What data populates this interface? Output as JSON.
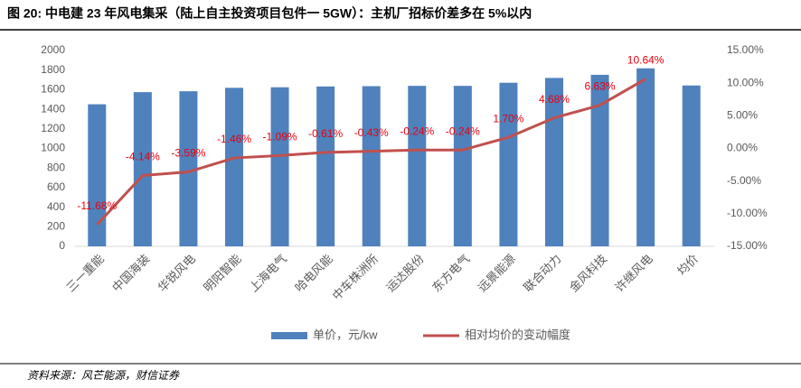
{
  "chart_data": {
    "type": "bar-line",
    "title": "图 20: 中电建 23 年风电集采（陆上自主投资项目包件一 5GW）：主机厂招标价差多在 5%以内",
    "source": "资料来源：风芒能源，财信证券",
    "categories": [
      "三一重能",
      "中国海装",
      "华锐风电",
      "明阳智能",
      "上海电气",
      "哈电风能",
      "中车株洲所",
      "运达股份",
      "东方电气",
      "远景能源",
      "联合动力",
      "金风科技",
      "许继风电",
      "均价"
    ],
    "series": [
      {
        "name": "单价，元/kw",
        "color": "#4f81bd",
        "type": "bar",
        "values": [
          1451,
          1575,
          1584,
          1619,
          1625,
          1633,
          1636,
          1639,
          1639,
          1671,
          1720,
          1752,
          1818,
          1643
        ]
      },
      {
        "name": "相对均价的变动幅度",
        "color": "#c0504d",
        "type": "line",
        "axis": "y2",
        "values": [
          -11.68,
          -4.14,
          -3.59,
          -1.46,
          -1.09,
          -0.61,
          -0.43,
          -0.24,
          -0.24,
          1.7,
          4.68,
          6.63,
          10.64,
          null
        ],
        "value_labels": [
          "-11.68%",
          "-4.14%",
          "-3.59%",
          "-1.46%",
          "-1.09%",
          "-0.61%",
          "-0.43%",
          "-0.24%",
          "-0.24%",
          "1.70%",
          "4.68%",
          "6.63%",
          "10.64%",
          null
        ],
        "label_color": "#e8000b"
      }
    ],
    "ylim": [
      0,
      2000
    ],
    "yticks": [
      0,
      200,
      400,
      600,
      800,
      1000,
      1200,
      1400,
      1600,
      1800,
      2000
    ],
    "y2lim": [
      -15,
      15
    ],
    "y2ticks": [
      {
        "value": -15,
        "label": "-15.00%"
      },
      {
        "value": -10,
        "label": "-10.00%"
      },
      {
        "value": -5,
        "label": "-5.00%"
      },
      {
        "value": 0,
        "label": "0.00%"
      },
      {
        "value": 5,
        "label": "5.00%"
      },
      {
        "value": 10,
        "label": "10.00%"
      },
      {
        "value": 15,
        "label": "15.00%"
      }
    ],
    "grid": false,
    "legend": "bottom"
  }
}
